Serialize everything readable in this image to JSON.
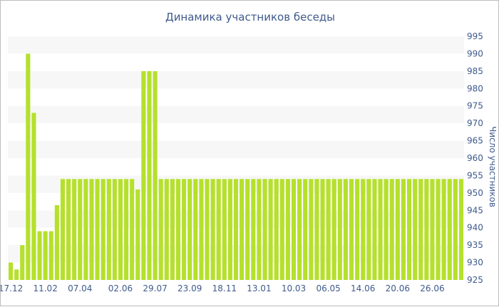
{
  "chart_data": {
    "type": "bar",
    "title": "Динамика участников беседы",
    "ylabel": "Число участников",
    "xlabel": "",
    "ylim": [
      925,
      995
    ],
    "y_axis_position": "right",
    "grid": "horizontal alternating bands",
    "bar_color": "#b5e02c",
    "band_color": "#f7f7f7",
    "text_color": "#3e5a8c",
    "y_ticks": [
      925,
      930,
      935,
      940,
      945,
      950,
      955,
      960,
      965,
      970,
      975,
      980,
      985,
      990,
      995
    ],
    "x_tick_labels": [
      {
        "index": 0,
        "label": "17.12"
      },
      {
        "index": 6,
        "label": "11.02"
      },
      {
        "index": 12,
        "label": "07.04"
      },
      {
        "index": 19,
        "label": "02.06"
      },
      {
        "index": 25,
        "label": "29.07"
      },
      {
        "index": 31,
        "label": "23.09"
      },
      {
        "index": 37,
        "label": "18.11"
      },
      {
        "index": 43,
        "label": "13.01"
      },
      {
        "index": 49,
        "label": "10.03"
      },
      {
        "index": 55,
        "label": "06.05"
      },
      {
        "index": 61,
        "label": "14.06"
      },
      {
        "index": 67,
        "label": "20.06"
      },
      {
        "index": 73,
        "label": "26.06"
      }
    ],
    "values": [
      930,
      928,
      935,
      990,
      973,
      939,
      939,
      939,
      946.5,
      954,
      954,
      954,
      954,
      954,
      954,
      954,
      954,
      954,
      954,
      954,
      954,
      954,
      951,
      985,
      985,
      985,
      954,
      954,
      954,
      954,
      954,
      954,
      954,
      954,
      954,
      954,
      954,
      954,
      954,
      954,
      954,
      954,
      954,
      954,
      954,
      954,
      954,
      954,
      954,
      954,
      954,
      954,
      954,
      954,
      954,
      954,
      954,
      954,
      954,
      954,
      954,
      954,
      954,
      954,
      954,
      954,
      954,
      954,
      954,
      954,
      954,
      954,
      954,
      954,
      954,
      954,
      954,
      954,
      954
    ]
  }
}
